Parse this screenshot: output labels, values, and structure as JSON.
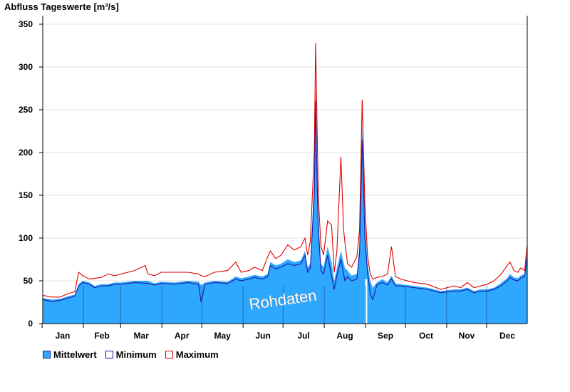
{
  "chart_data": {
    "type": "area",
    "title": "Abfluss Tageswerte [m³/s]",
    "ylim": [
      0,
      360
    ],
    "yticks": [
      0,
      50,
      100,
      150,
      200,
      250,
      300,
      350
    ],
    "categories": [
      "Jan",
      "Feb",
      "Mar",
      "Apr",
      "May",
      "Jun",
      "Jul",
      "Aug",
      "Sep",
      "Oct",
      "Nov",
      "Dec"
    ],
    "x_unit": "day of year",
    "xlim": [
      1,
      365
    ],
    "grid": true,
    "legend_position": "bottom-left",
    "annotation": "Rohdaten",
    "gap_day": 244,
    "series": [
      {
        "name": "Mittelwert",
        "color": "#2ea8ff",
        "style": "filled-area",
        "points": [
          [
            1,
            30
          ],
          [
            8,
            28
          ],
          [
            14,
            29
          ],
          [
            20,
            32
          ],
          [
            25,
            34
          ],
          [
            28,
            46
          ],
          [
            31,
            50
          ],
          [
            36,
            48
          ],
          [
            40,
            44
          ],
          [
            45,
            46
          ],
          [
            50,
            46
          ],
          [
            55,
            48
          ],
          [
            60,
            48
          ],
          [
            70,
            50
          ],
          [
            80,
            50
          ],
          [
            85,
            47
          ],
          [
            90,
            49
          ],
          [
            100,
            48
          ],
          [
            110,
            50
          ],
          [
            118,
            49
          ],
          [
            120,
            45
          ],
          [
            123,
            48
          ],
          [
            130,
            50
          ],
          [
            140,
            49
          ],
          [
            146,
            55
          ],
          [
            150,
            53
          ],
          [
            156,
            55
          ],
          [
            160,
            57
          ],
          [
            166,
            55
          ],
          [
            170,
            58
          ],
          [
            172,
            72
          ],
          [
            176,
            68
          ],
          [
            180,
            70
          ],
          [
            185,
            75
          ],
          [
            190,
            72
          ],
          [
            195,
            74
          ],
          [
            198,
            85
          ],
          [
            200,
            66
          ],
          [
            202,
            70
          ],
          [
            205,
            170
          ],
          [
            206,
            280
          ],
          [
            207,
            195
          ],
          [
            208,
            130
          ],
          [
            210,
            70
          ],
          [
            212,
            66
          ],
          [
            215,
            90
          ],
          [
            218,
            72
          ],
          [
            220,
            50
          ],
          [
            222,
            65
          ],
          [
            225,
            85
          ],
          [
            228,
            65
          ],
          [
            230,
            62
          ],
          [
            233,
            56
          ],
          [
            237,
            58
          ],
          [
            239,
            90
          ],
          [
            241,
            230
          ],
          [
            242,
            180
          ],
          [
            243,
            120
          ],
          [
            245,
            70
          ],
          [
            247,
            50
          ],
          [
            249,
            42
          ],
          [
            252,
            48
          ],
          [
            256,
            52
          ],
          [
            260,
            48
          ],
          [
            263,
            56
          ],
          [
            266,
            47
          ],
          [
            270,
            46
          ],
          [
            280,
            44
          ],
          [
            290,
            42
          ],
          [
            300,
            38
          ],
          [
            305,
            39
          ],
          [
            310,
            40
          ],
          [
            315,
            40
          ],
          [
            320,
            42
          ],
          [
            325,
            38
          ],
          [
            330,
            40
          ],
          [
            335,
            40
          ],
          [
            340,
            42
          ],
          [
            345,
            47
          ],
          [
            350,
            53
          ],
          [
            352,
            58
          ],
          [
            355,
            54
          ],
          [
            358,
            53
          ],
          [
            360,
            56
          ],
          [
            363,
            58
          ],
          [
            365,
            85
          ]
        ]
      },
      {
        "name": "Minimum",
        "color": "#1a1aa0",
        "style": "line",
        "points": [
          [
            1,
            28
          ],
          [
            8,
            26
          ],
          [
            14,
            27
          ],
          [
            20,
            30
          ],
          [
            25,
            32
          ],
          [
            28,
            44
          ],
          [
            31,
            48
          ],
          [
            36,
            46
          ],
          [
            40,
            42
          ],
          [
            45,
            44
          ],
          [
            50,
            44
          ],
          [
            55,
            46
          ],
          [
            60,
            46
          ],
          [
            70,
            48
          ],
          [
            80,
            47
          ],
          [
            85,
            45
          ],
          [
            90,
            47
          ],
          [
            100,
            46
          ],
          [
            110,
            48
          ],
          [
            118,
            46
          ],
          [
            120,
            25
          ],
          [
            123,
            46
          ],
          [
            130,
            48
          ],
          [
            140,
            47
          ],
          [
            146,
            52
          ],
          [
            150,
            50
          ],
          [
            156,
            52
          ],
          [
            160,
            54
          ],
          [
            166,
            52
          ],
          [
            170,
            55
          ],
          [
            172,
            68
          ],
          [
            176,
            64
          ],
          [
            180,
            66
          ],
          [
            185,
            70
          ],
          [
            190,
            68
          ],
          [
            195,
            70
          ],
          [
            198,
            80
          ],
          [
            200,
            60
          ],
          [
            202,
            65
          ],
          [
            205,
            150
          ],
          [
            206,
            260
          ],
          [
            207,
            175
          ],
          [
            208,
            110
          ],
          [
            210,
            62
          ],
          [
            212,
            58
          ],
          [
            215,
            80
          ],
          [
            218,
            55
          ],
          [
            220,
            40
          ],
          [
            222,
            56
          ],
          [
            225,
            75
          ],
          [
            228,
            50
          ],
          [
            230,
            55
          ],
          [
            233,
            50
          ],
          [
            237,
            52
          ],
          [
            239,
            82
          ],
          [
            241,
            215
          ],
          [
            242,
            165
          ],
          [
            243,
            100
          ],
          [
            245,
            60
          ],
          [
            247,
            35
          ],
          [
            249,
            28
          ],
          [
            252,
            45
          ],
          [
            256,
            48
          ],
          [
            260,
            45
          ],
          [
            263,
            52
          ],
          [
            266,
            44
          ],
          [
            270,
            44
          ],
          [
            280,
            42
          ],
          [
            290,
            40
          ],
          [
            300,
            36
          ],
          [
            305,
            37
          ],
          [
            310,
            38
          ],
          [
            315,
            38
          ],
          [
            320,
            40
          ],
          [
            325,
            36
          ],
          [
            330,
            38
          ],
          [
            335,
            38
          ],
          [
            340,
            40
          ],
          [
            345,
            44
          ],
          [
            350,
            50
          ],
          [
            352,
            54
          ],
          [
            355,
            51
          ],
          [
            358,
            50
          ],
          [
            360,
            53
          ],
          [
            363,
            55
          ],
          [
            365,
            78
          ]
        ]
      },
      {
        "name": "Maximum",
        "color": "#e00000",
        "style": "line",
        "points": [
          [
            1,
            33
          ],
          [
            8,
            31
          ],
          [
            14,
            31
          ],
          [
            20,
            35
          ],
          [
            25,
            37
          ],
          [
            28,
            60
          ],
          [
            31,
            56
          ],
          [
            36,
            52
          ],
          [
            40,
            53
          ],
          [
            45,
            54
          ],
          [
            50,
            58
          ],
          [
            55,
            56
          ],
          [
            60,
            58
          ],
          [
            70,
            62
          ],
          [
            78,
            68
          ],
          [
            80,
            58
          ],
          [
            85,
            56
          ],
          [
            90,
            60
          ],
          [
            100,
            60
          ],
          [
            110,
            60
          ],
          [
            118,
            58
          ],
          [
            120,
            56
          ],
          [
            123,
            55
          ],
          [
            130,
            60
          ],
          [
            140,
            62
          ],
          [
            146,
            72
          ],
          [
            150,
            60
          ],
          [
            156,
            62
          ],
          [
            160,
            66
          ],
          [
            166,
            62
          ],
          [
            170,
            78
          ],
          [
            172,
            85
          ],
          [
            176,
            76
          ],
          [
            180,
            80
          ],
          [
            185,
            92
          ],
          [
            190,
            86
          ],
          [
            195,
            90
          ],
          [
            198,
            100
          ],
          [
            200,
            80
          ],
          [
            202,
            96
          ],
          [
            205,
            200
          ],
          [
            206,
            328
          ],
          [
            207,
            240
          ],
          [
            208,
            150
          ],
          [
            210,
            90
          ],
          [
            212,
            80
          ],
          [
            215,
            120
          ],
          [
            218,
            115
          ],
          [
            220,
            60
          ],
          [
            222,
            85
          ],
          [
            225,
            195
          ],
          [
            227,
            110
          ],
          [
            228,
            95
          ],
          [
            230,
            70
          ],
          [
            233,
            66
          ],
          [
            237,
            78
          ],
          [
            239,
            110
          ],
          [
            241,
            262
          ],
          [
            242,
            200
          ],
          [
            243,
            140
          ],
          [
            245,
            80
          ],
          [
            247,
            58
          ],
          [
            249,
            52
          ],
          [
            252,
            54
          ],
          [
            256,
            55
          ],
          [
            260,
            58
          ],
          [
            263,
            90
          ],
          [
            266,
            55
          ],
          [
            270,
            52
          ],
          [
            280,
            48
          ],
          [
            290,
            46
          ],
          [
            300,
            40
          ],
          [
            305,
            42
          ],
          [
            310,
            44
          ],
          [
            315,
            42
          ],
          [
            320,
            48
          ],
          [
            325,
            42
          ],
          [
            330,
            44
          ],
          [
            335,
            46
          ],
          [
            340,
            50
          ],
          [
            345,
            57
          ],
          [
            350,
            68
          ],
          [
            352,
            72
          ],
          [
            355,
            62
          ],
          [
            358,
            60
          ],
          [
            360,
            65
          ],
          [
            363,
            62
          ],
          [
            365,
            92
          ]
        ]
      }
    ]
  }
}
